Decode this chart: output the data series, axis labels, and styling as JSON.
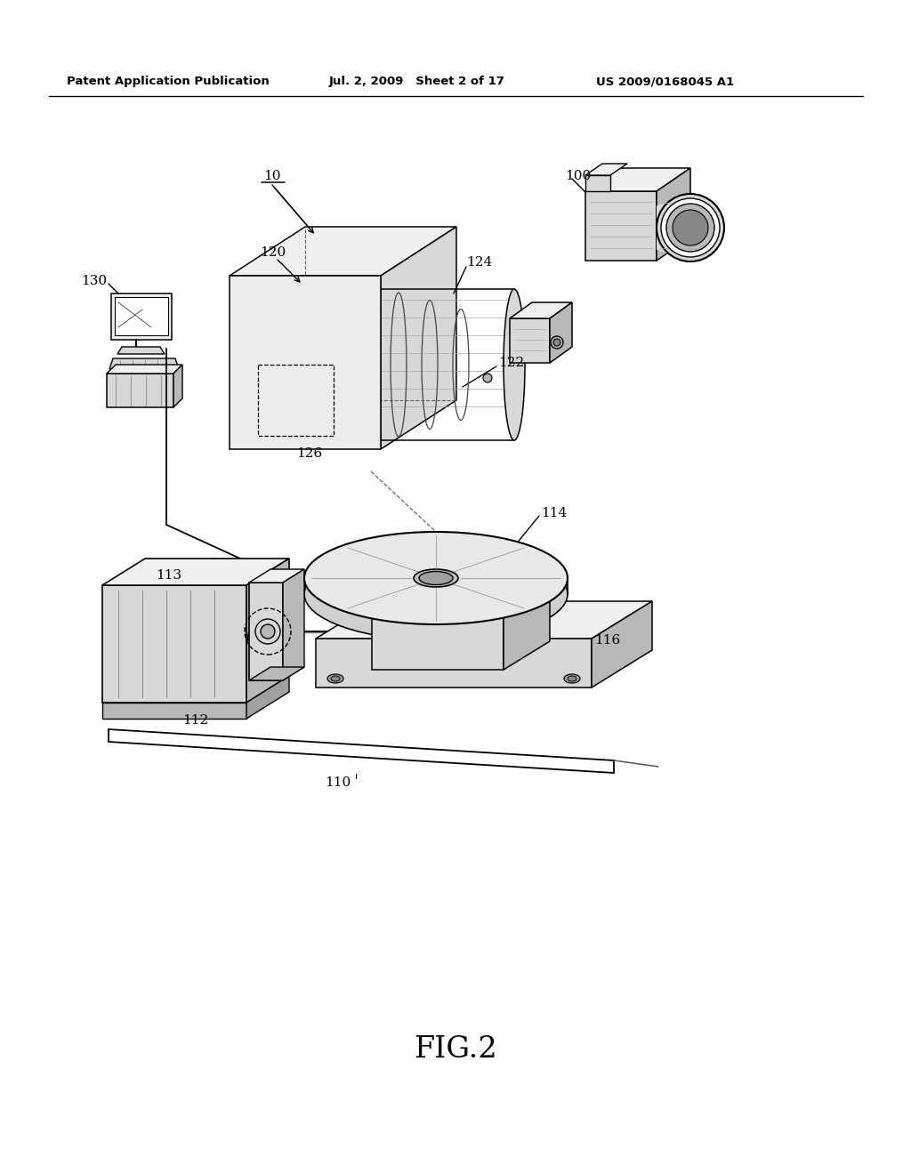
{
  "header_left": "Patent Application Publication",
  "header_mid": "Jul. 2, 2009   Sheet 2 of 17",
  "header_right": "US 2009/0168045 A1",
  "fig_label": "FIG.2",
  "bg_color": "#ffffff",
  "line_color": "#000000",
  "label_10": "10",
  "label_100": "100",
  "label_110": "110",
  "label_112": "112",
  "label_113": "113",
  "label_114": "114",
  "label_116": "116",
  "label_120": "120",
  "label_122": "122",
  "label_124": "124",
  "label_126": "126",
  "label_130": "130",
  "hatch_color": "#888888",
  "face_light": "#f0f0f0",
  "face_mid": "#d8d8d8",
  "face_dark": "#b8b8b8"
}
